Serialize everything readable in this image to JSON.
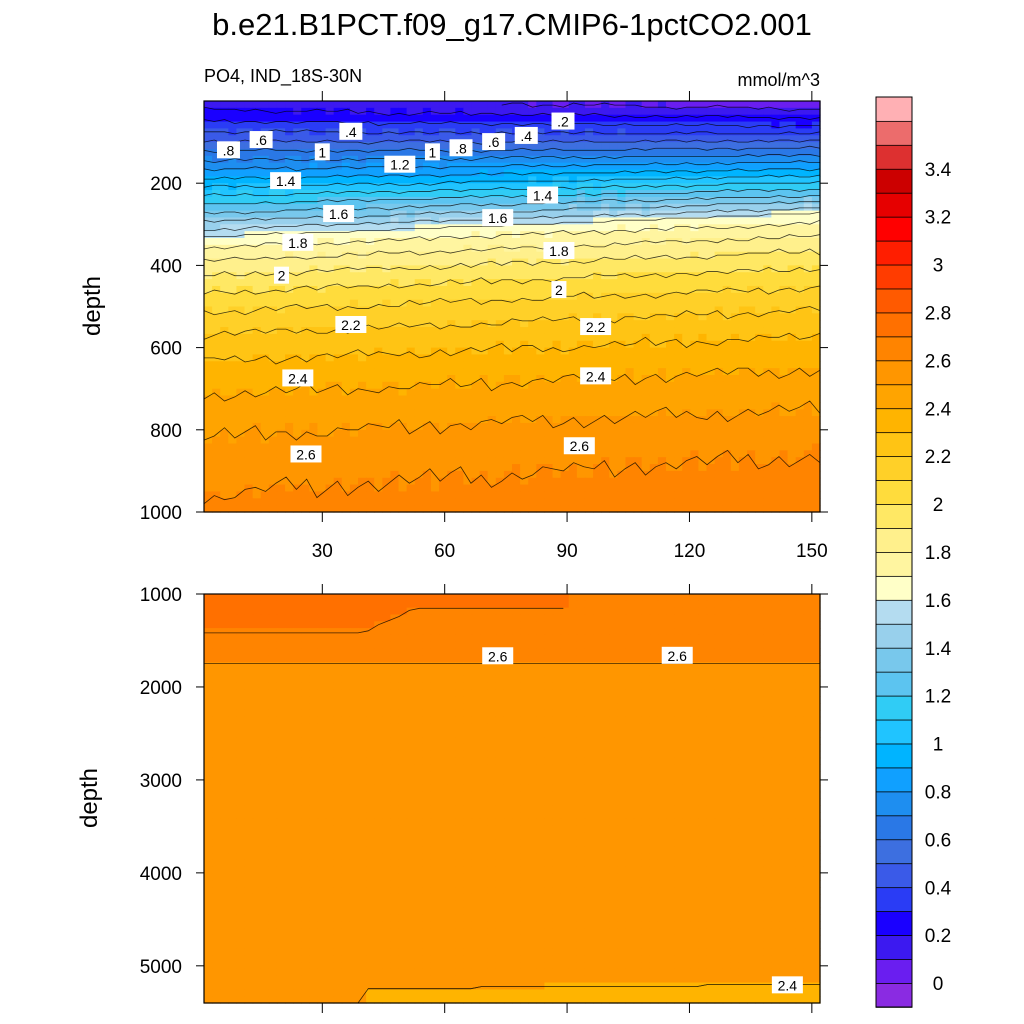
{
  "chart_data": {
    "type": "contour",
    "title": "b.e21.B1PCT.f09_g17.CMIP6-1pctCO2.001",
    "subtitle_left": "PO4, IND_18S-30N",
    "subtitle_right": "mmol/m^3",
    "colorbar": {
      "levels": [
        -0.1,
        0,
        0.1,
        0.2,
        0.3,
        0.4,
        0.5,
        0.6,
        0.7,
        0.8,
        0.9,
        1,
        1.1,
        1.2,
        1.3,
        1.4,
        1.5,
        1.6,
        1.7,
        1.8,
        1.9,
        2,
        2.1,
        2.2,
        2.3,
        2.4,
        2.5,
        2.6,
        2.7,
        2.8,
        2.9,
        3,
        3.1,
        3.2,
        3.3,
        3.4,
        3.5,
        3.6
      ],
      "tick_labels": [
        "0",
        "0.2",
        "0.4",
        "0.6",
        "0.8",
        "1",
        "1.2",
        "1.4",
        "1.6",
        "1.8",
        "2",
        "2.2",
        "2.4",
        "2.6",
        "2.8",
        "3",
        "3.2",
        "3.4"
      ],
      "colors": [
        "#8a2be2",
        "#6a1ef0",
        "#3c19f0",
        "#1a00ff",
        "#2a3cf5",
        "#3a5ae8",
        "#3d6fe0",
        "#2a78e6",
        "#1e8ef0",
        "#10a0ff",
        "#00b4ff",
        "#20c4ff",
        "#30ccf5",
        "#5cc4f0",
        "#78c8ec",
        "#98d0ec",
        "#b4dcf0",
        "#ffffc8",
        "#fff5a0",
        "#fff08c",
        "#ffe864",
        "#ffdc3c",
        "#ffd028",
        "#ffc414",
        "#ffb400",
        "#ffa400",
        "#ff9600",
        "#ff8400",
        "#ff7000",
        "#ff5a00",
        "#ff3c00",
        "#ff1e00",
        "#ff0000",
        "#e60000",
        "#cc0000",
        "#dd3030",
        "#ec6c6c",
        "#ffb0b4"
      ]
    },
    "top_panel": {
      "ylabel": "depth",
      "y_ticks": [
        "200",
        "400",
        "600",
        "800",
        "1000"
      ],
      "x_ticks": [
        "30",
        "60",
        "90",
        "120",
        "150"
      ],
      "xlim": [
        1,
        152
      ],
      "ylim": [
        0,
        1000
      ]
    },
    "bottom_panel": {
      "ylabel": "depth",
      "y_ticks": [
        "1000",
        "2000",
        "3000",
        "4000",
        "5000"
      ],
      "ylim": [
        1000,
        5400
      ]
    },
    "contour_labels_top": [
      {
        "text": ".8",
        "x": 7,
        "d": 120
      },
      {
        "text": ".6",
        "x": 15,
        "d": 95
      },
      {
        "text": ".4",
        "x": 37,
        "d": 75
      },
      {
        "text": "1",
        "x": 30,
        "d": 125
      },
      {
        "text": "1.2",
        "x": 49,
        "d": 155
      },
      {
        "text": "1",
        "x": 57,
        "d": 125
      },
      {
        "text": ".8",
        "x": 64,
        "d": 115
      },
      {
        "text": ".6",
        "x": 72,
        "d": 100
      },
      {
        "text": ".4",
        "x": 80,
        "d": 85
      },
      {
        "text": ".2",
        "x": 89,
        "d": 50
      },
      {
        "text": "1.4",
        "x": 21,
        "d": 195
      },
      {
        "text": "1.6",
        "x": 34,
        "d": 275
      },
      {
        "text": "1.6",
        "x": 73,
        "d": 285
      },
      {
        "text": "1.4",
        "x": 84,
        "d": 230
      },
      {
        "text": "1.8",
        "x": 24,
        "d": 345
      },
      {
        "text": "1.8",
        "x": 88,
        "d": 365
      },
      {
        "text": "2",
        "x": 20,
        "d": 425
      },
      {
        "text": "2",
        "x": 88,
        "d": 460
      },
      {
        "text": "2.2",
        "x": 37,
        "d": 545
      },
      {
        "text": "2.2",
        "x": 97,
        "d": 550
      },
      {
        "text": "2.4",
        "x": 24,
        "d": 675
      },
      {
        "text": "2.4",
        "x": 97,
        "d": 670
      },
      {
        "text": "2.6",
        "x": 26,
        "d": 860
      },
      {
        "text": "2.6",
        "x": 93,
        "d": 840
      }
    ],
    "contour_labels_bottom": [
      {
        "text": "2.6",
        "x": 73,
        "d": 1670
      },
      {
        "text": "2.6",
        "x": 117,
        "d": 1665
      },
      {
        "text": "2.4",
        "x": 144,
        "d": 5210
      }
    ]
  }
}
